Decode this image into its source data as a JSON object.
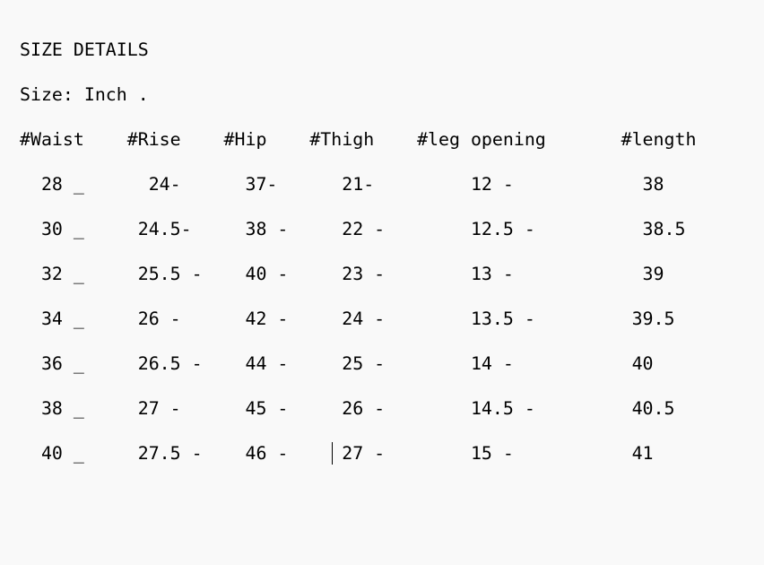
{
  "title": "SIZE DETAILS",
  "unit_line": "Size: Inch .",
  "header_line": "#Waist    #Rise    #Hip    #Thigh    #leg opening       #length",
  "rows": [
    "  28 _      24-      37-      21-         12 -            38",
    "  30 _     24.5-     38 -     22 -        12.5 -          38.5",
    "  32 _     25.5 -    40 -     23 -        13 -            39",
    "  34 _     26 -      42 -     24 -        13.5 -         39.5",
    "  36 _     26.5 -    44 -     25 -        14 -           40",
    "  38 _     27 -      45 -     26 -        14.5 -         40.5",
    "  40 _     27.5 -    46 -     27 -        15 -           41"
  ]
}
